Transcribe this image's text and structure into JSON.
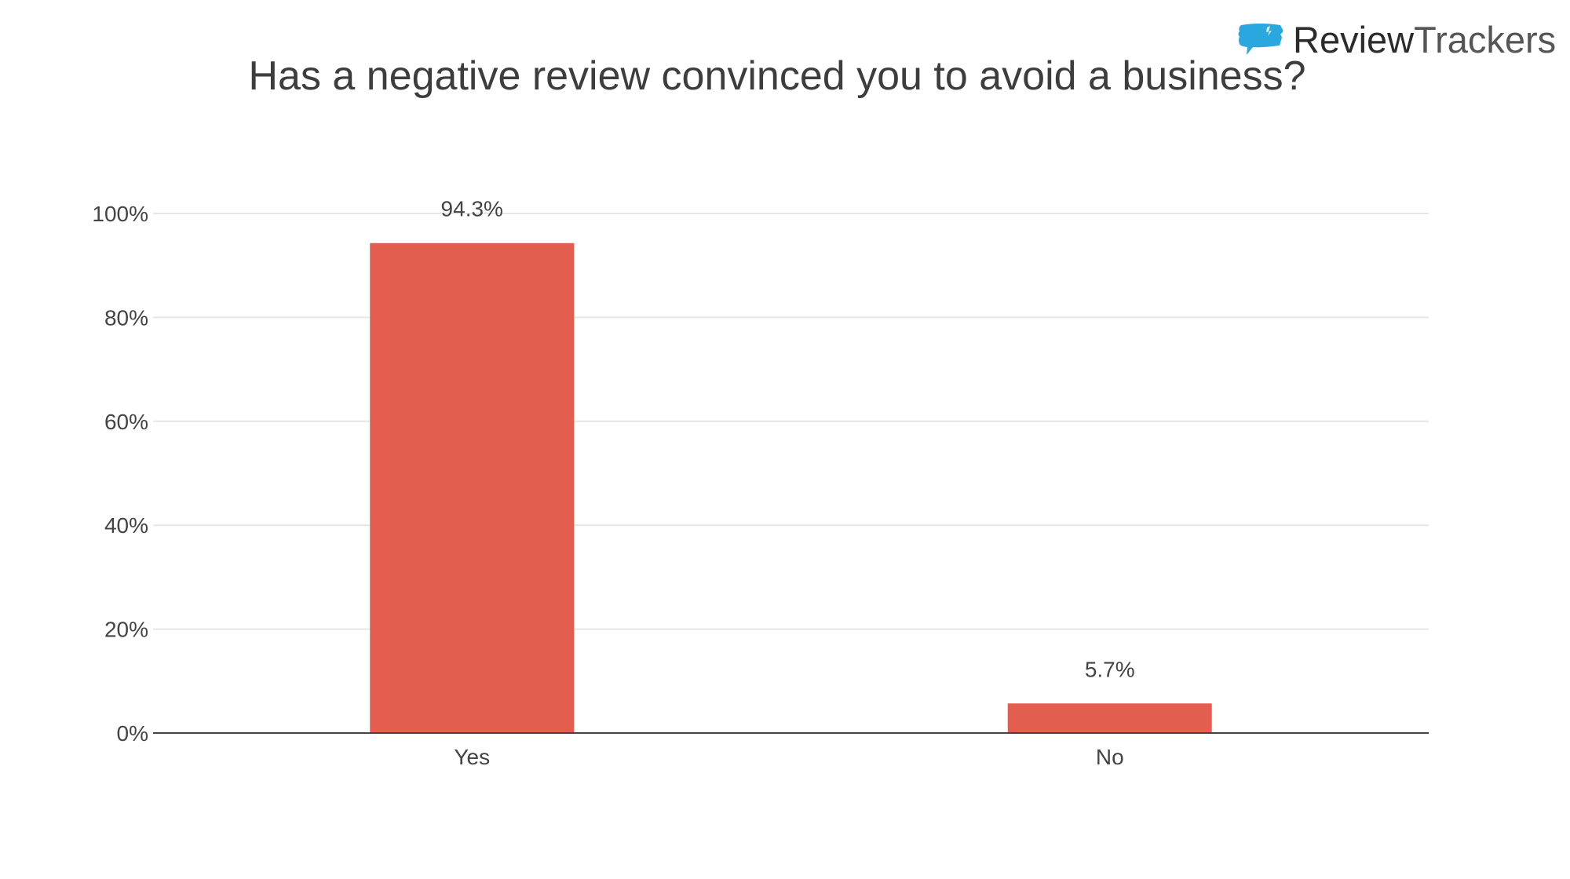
{
  "brand": {
    "name_bold": "Review",
    "name_light": "Trackers",
    "icon": "speech-bubble-icon",
    "icon_color": "#2aa7df"
  },
  "chart_data": {
    "type": "bar",
    "title": "Has a negative review convinced you to avoid a business?",
    "categories": [
      "Yes",
      "No"
    ],
    "values": [
      94.3,
      5.7
    ],
    "data_labels": [
      "94.3%",
      "5.7%"
    ],
    "ylim": [
      0,
      100
    ],
    "y_ticks": [
      0,
      20,
      40,
      60,
      80,
      100
    ],
    "y_tick_labels": [
      "0%",
      "20%",
      "40%",
      "60%",
      "80%",
      "100%"
    ],
    "xlabel": "",
    "ylabel": "",
    "grid": true,
    "legend": false,
    "bar_color": "#e45e4f"
  }
}
